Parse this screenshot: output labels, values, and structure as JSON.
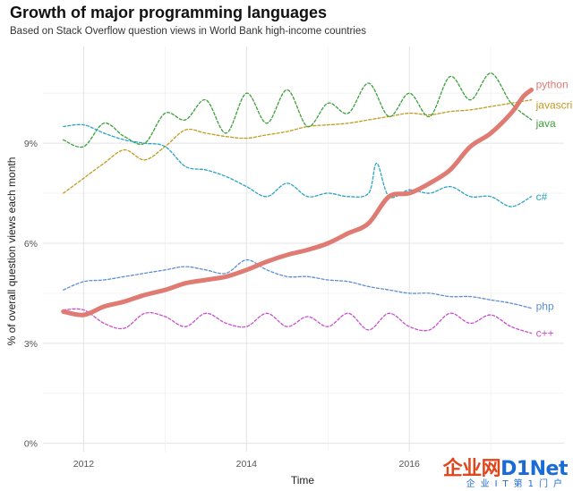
{
  "chart_data": {
    "type": "line",
    "title": "Growth of major programming languages",
    "subtitle": "Based on Stack Overflow question views in World Bank high-income countries",
    "xlabel": "Time",
    "ylabel": "% of overall question views each month",
    "xlim": [
      2011.5,
      2017.9
    ],
    "ylim": [
      -0.25,
      11.9
    ],
    "x_ticks": [
      2012,
      2014,
      2016
    ],
    "x_tick_labels": [
      "2012",
      "2014",
      "2016"
    ],
    "y_ticks": [
      0,
      3,
      6,
      9
    ],
    "y_tick_labels": [
      "0%",
      "3%",
      "6%",
      "9%"
    ],
    "series": [
      {
        "name": "python",
        "label": "python",
        "color": "#e07b74",
        "style": "solid",
        "x": [
          2011.75,
          2012.0,
          2012.25,
          2012.5,
          2012.75,
          2013.0,
          2013.25,
          2013.5,
          2013.75,
          2014.0,
          2014.25,
          2014.5,
          2014.75,
          2015.0,
          2015.25,
          2015.5,
          2015.75,
          2016.0,
          2016.25,
          2016.5,
          2016.75,
          2017.0,
          2017.25,
          2017.4,
          2017.5
        ],
        "values": [
          3.95,
          3.85,
          4.1,
          4.25,
          4.45,
          4.6,
          4.8,
          4.9,
          5.0,
          5.2,
          5.45,
          5.65,
          5.8,
          6.0,
          6.3,
          6.6,
          7.4,
          7.5,
          7.8,
          8.2,
          8.9,
          9.3,
          9.9,
          10.4,
          10.6
        ]
      },
      {
        "name": "javascript",
        "label": "javascript",
        "color": "#c49a1f",
        "style": "dashed",
        "x": [
          2011.75,
          2012.0,
          2012.25,
          2012.5,
          2012.75,
          2013.0,
          2013.25,
          2013.5,
          2013.75,
          2014.0,
          2014.25,
          2014.5,
          2014.75,
          2015.0,
          2015.25,
          2015.5,
          2015.75,
          2016.0,
          2016.25,
          2016.5,
          2016.75,
          2017.0,
          2017.25,
          2017.5
        ],
        "values": [
          7.5,
          7.95,
          8.4,
          8.8,
          8.5,
          8.9,
          9.4,
          9.3,
          9.2,
          9.15,
          9.25,
          9.35,
          9.5,
          9.55,
          9.6,
          9.7,
          9.8,
          9.9,
          9.85,
          9.95,
          10.0,
          10.1,
          10.2,
          10.3
        ]
      },
      {
        "name": "java",
        "label": "java",
        "color": "#3aa03a",
        "style": "dashed",
        "x": [
          2011.75,
          2012.0,
          2012.25,
          2012.5,
          2012.75,
          2013.0,
          2013.25,
          2013.5,
          2013.75,
          2014.0,
          2014.25,
          2014.5,
          2014.75,
          2015.0,
          2015.25,
          2015.5,
          2015.75,
          2016.0,
          2016.25,
          2016.5,
          2016.75,
          2017.0,
          2017.25,
          2017.5
        ],
        "values": [
          9.1,
          8.9,
          9.6,
          9.2,
          9.0,
          9.9,
          9.7,
          10.3,
          9.3,
          10.5,
          9.6,
          10.6,
          9.5,
          10.2,
          9.9,
          10.8,
          9.8,
          10.5,
          9.8,
          11.0,
          10.3,
          11.1,
          10.2,
          9.7
        ]
      },
      {
        "name": "c#",
        "label": "c#",
        "color": "#2aa3c7",
        "style": "dashed",
        "x": [
          2011.75,
          2012.0,
          2012.25,
          2012.5,
          2012.75,
          2013.0,
          2013.25,
          2013.5,
          2013.75,
          2014.0,
          2014.25,
          2014.5,
          2014.75,
          2015.0,
          2015.25,
          2015.5,
          2015.6,
          2015.75,
          2016.0,
          2016.25,
          2016.5,
          2016.75,
          2017.0,
          2017.25,
          2017.5
        ],
        "values": [
          9.5,
          9.55,
          9.3,
          9.1,
          9.0,
          8.9,
          8.3,
          8.2,
          8.0,
          7.7,
          7.4,
          7.8,
          7.4,
          7.5,
          7.4,
          7.5,
          8.4,
          7.4,
          7.6,
          7.5,
          7.7,
          7.4,
          7.4,
          7.1,
          7.4
        ]
      },
      {
        "name": "php",
        "label": "php",
        "color": "#5b8fd4",
        "style": "dashed",
        "x": [
          2011.75,
          2012.0,
          2012.25,
          2012.5,
          2012.75,
          2013.0,
          2013.25,
          2013.5,
          2013.75,
          2014.0,
          2014.25,
          2014.5,
          2014.75,
          2015.0,
          2015.25,
          2015.5,
          2015.75,
          2016.0,
          2016.25,
          2016.5,
          2016.75,
          2017.0,
          2017.25,
          2017.5
        ],
        "values": [
          4.6,
          4.85,
          4.9,
          5.0,
          5.1,
          5.2,
          5.3,
          5.2,
          5.1,
          5.5,
          5.2,
          5.0,
          5.0,
          4.9,
          4.85,
          4.7,
          4.6,
          4.5,
          4.5,
          4.4,
          4.4,
          4.3,
          4.2,
          4.05
        ]
      },
      {
        "name": "c++",
        "label": "c++",
        "color": "#c94fd0",
        "style": "dashed",
        "x": [
          2011.75,
          2012.0,
          2012.25,
          2012.5,
          2012.75,
          2013.0,
          2013.25,
          2013.5,
          2013.75,
          2014.0,
          2014.25,
          2014.5,
          2014.75,
          2015.0,
          2015.25,
          2015.5,
          2015.75,
          2016.0,
          2016.25,
          2016.5,
          2016.75,
          2017.0,
          2017.25,
          2017.5
        ],
        "values": [
          4.0,
          4.0,
          3.6,
          3.45,
          3.9,
          3.8,
          3.5,
          3.9,
          3.6,
          3.5,
          3.9,
          3.5,
          3.8,
          3.5,
          3.9,
          3.4,
          3.9,
          3.5,
          3.4,
          3.9,
          3.6,
          3.85,
          3.5,
          3.3
        ]
      }
    ]
  },
  "watermark": {
    "main_a": "企业网",
    "main_b": "D1Net",
    "sub": "企业IT第1门户"
  }
}
